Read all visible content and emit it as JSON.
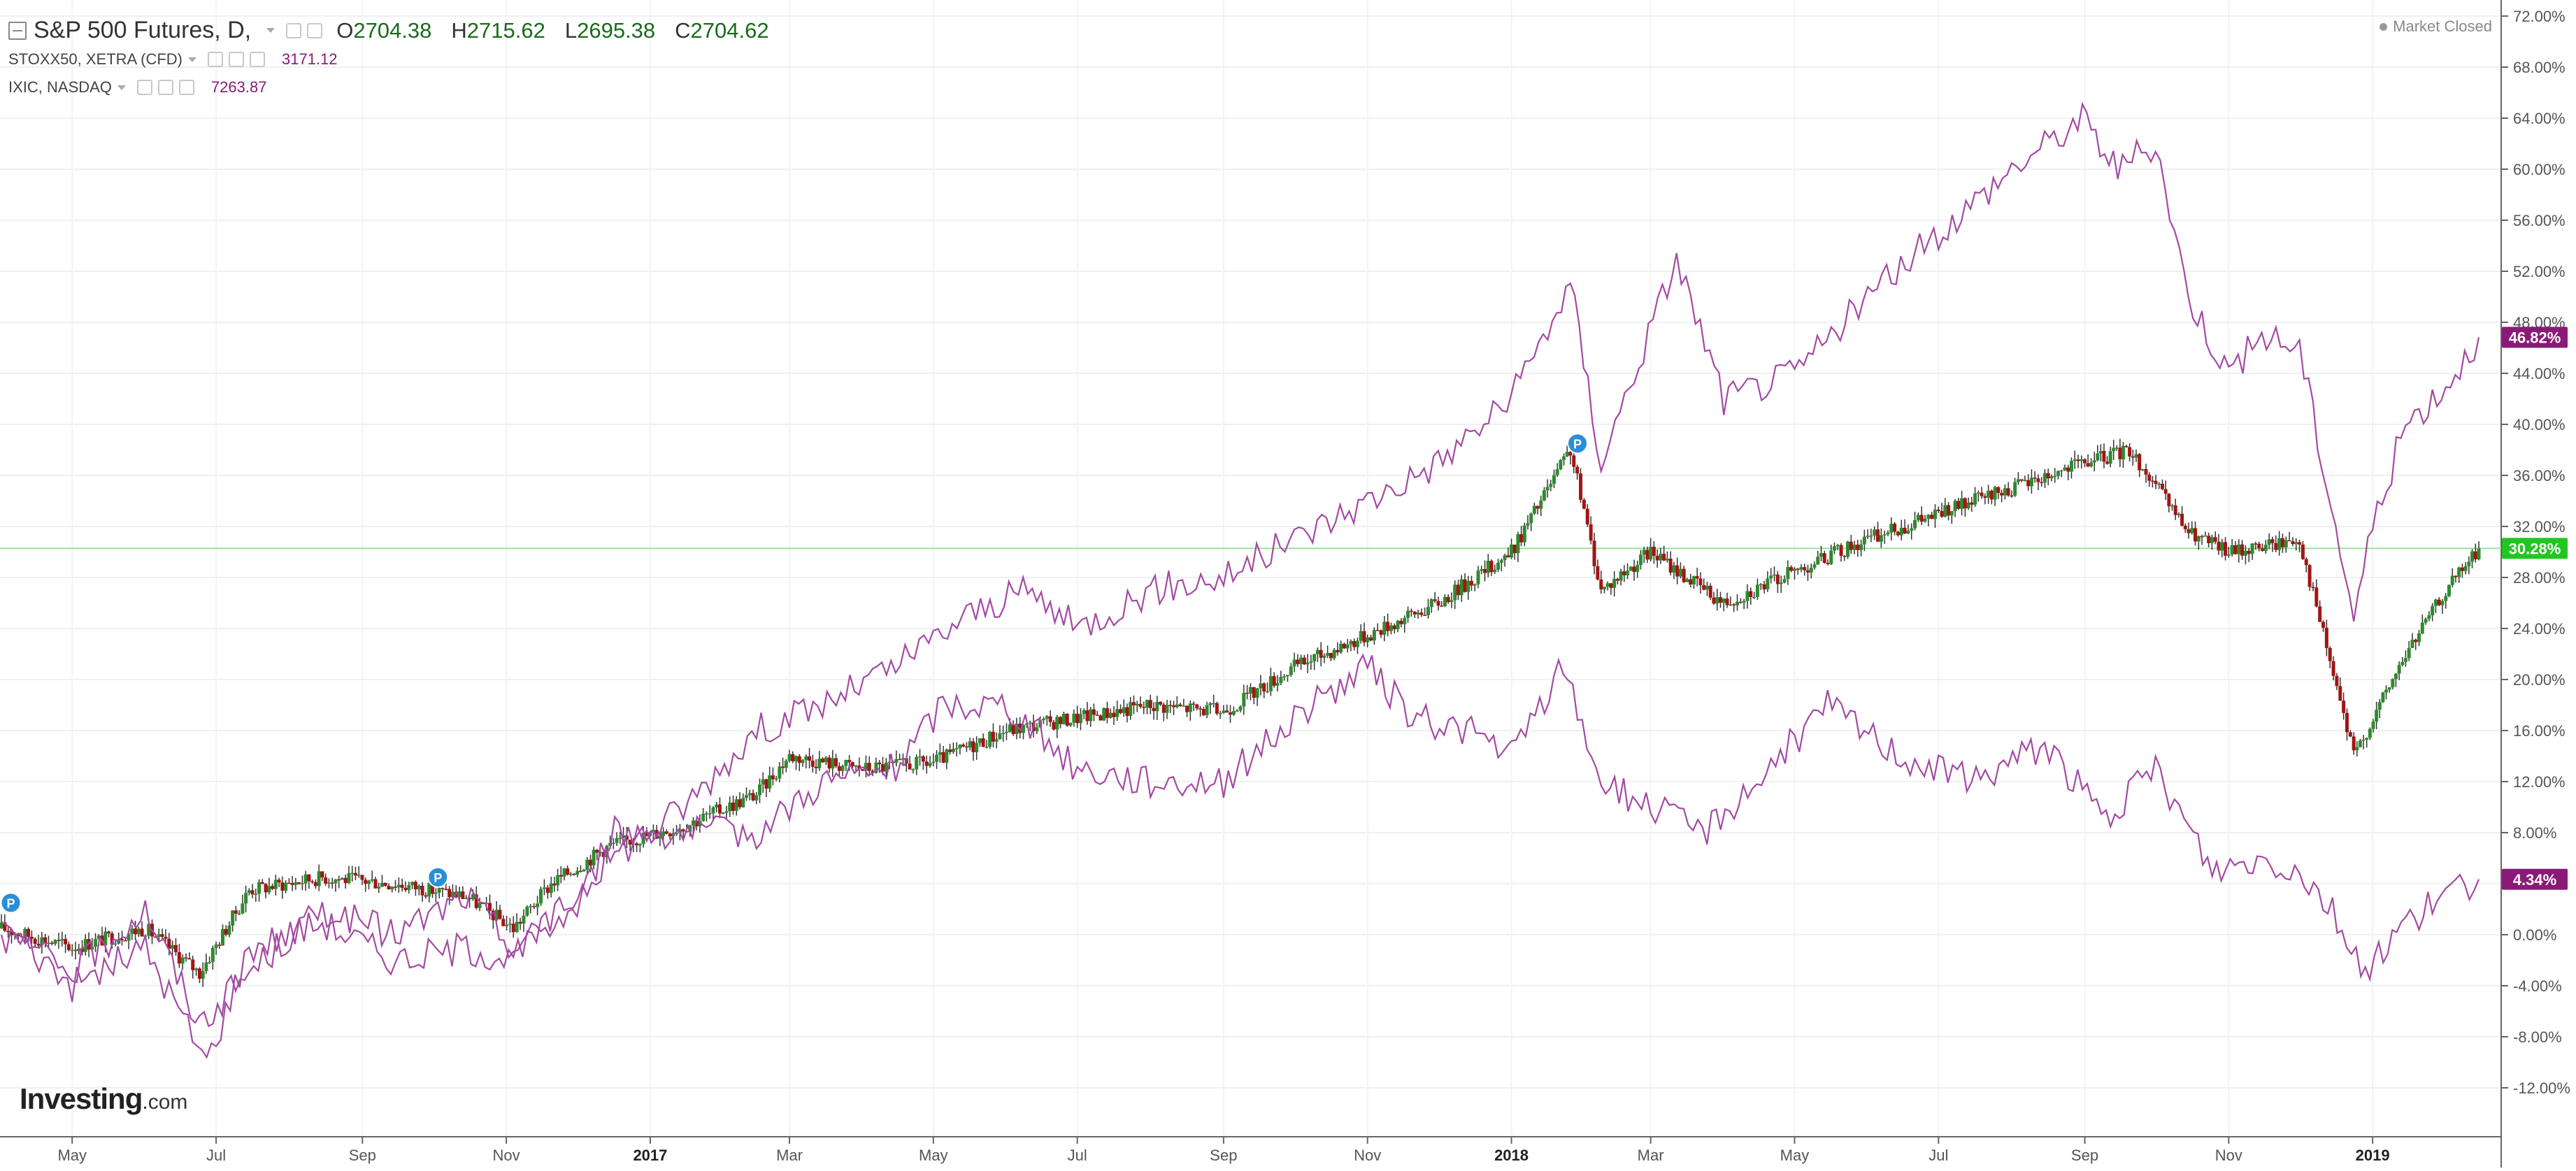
{
  "header": {
    "main_symbol": "S&P 500 Futures, D,",
    "ohlc": [
      {
        "label": "O",
        "value": "2704.38"
      },
      {
        "label": "H",
        "value": "2715.62"
      },
      {
        "label": "L",
        "value": "2695.38"
      },
      {
        "label": "C",
        "value": "2704.62"
      }
    ],
    "compare": [
      {
        "symbol": "STOXX50, XETRA (CFD)",
        "value": "3171.12"
      },
      {
        "symbol": "IXIC, NASDAQ",
        "value": "7263.87"
      }
    ],
    "market_status": "Market Closed"
  },
  "logo": {
    "brand": "Investing",
    "domain": ".com"
  },
  "colors": {
    "up": "#2e8b2e",
    "down": "#a31515",
    "compare_line": "#a34aa3",
    "last_price_line": "#9be09b",
    "label_green": "#22c522",
    "label_purple": "#8a1a78"
  },
  "chart_data": {
    "type": "line",
    "yaxis": {
      "unit": "%",
      "range": [
        -15,
        74
      ],
      "ticks": [
        "72.00%",
        "68.00%",
        "64.00%",
        "60.00%",
        "56.00%",
        "52.00%",
        "48.00%",
        "44.00%",
        "40.00%",
        "36.00%",
        "32.00%",
        "28.00%",
        "24.00%",
        "20.00%",
        "16.00%",
        "12.00%",
        "8.00%",
        "4.00%",
        "0.00%",
        "-4.00%",
        "-8.00%",
        "-12.00%"
      ]
    },
    "xaxis": {
      "labels": [
        "May",
        "Jul",
        "Sep",
        "Nov",
        "2017",
        "Mar",
        "May",
        "Jul",
        "Sep",
        "Nov",
        "2018",
        "Mar",
        "May",
        "Jul",
        "Sep",
        "Nov",
        "2019"
      ],
      "years": [
        "2017",
        "2018",
        "2019"
      ]
    },
    "last_price_labels": [
      {
        "series": "IXIC, NASDAQ",
        "text": "46.82%",
        "value": 46.82
      },
      {
        "series": "S&P 500 Futures",
        "text": "30.28%",
        "value": 30.28
      },
      {
        "series": "STOXX50, XETRA (CFD)",
        "text": "4.34%",
        "value": 4.34
      }
    ],
    "markers": [
      {
        "label": "P",
        "date": "2016-04-05",
        "value": 2.5
      },
      {
        "label": "P",
        "date": "2016-10-03",
        "value": 4.5
      },
      {
        "label": "P",
        "date": "2018-01-29",
        "value": 38.5
      }
    ],
    "series": [
      {
        "name": "S&P 500 Futures",
        "style": "candlestick",
        "points": [
          [
            "2016-04-01",
            0.5
          ],
          [
            "2016-05-01",
            -1
          ],
          [
            "2016-06-01",
            0.5
          ],
          [
            "2016-06-24",
            -3
          ],
          [
            "2016-07-15",
            3.5
          ],
          [
            "2016-08-15",
            4.5
          ],
          [
            "2016-09-15",
            4
          ],
          [
            "2016-10-15",
            3
          ],
          [
            "2016-11-04",
            0.5
          ],
          [
            "2016-11-20",
            4
          ],
          [
            "2016-12-15",
            7
          ],
          [
            "2017-01-15",
            8.5
          ],
          [
            "2017-02-15",
            11
          ],
          [
            "2017-03-01",
            14
          ],
          [
            "2017-04-01",
            13
          ],
          [
            "2017-05-01",
            13.5
          ],
          [
            "2017-06-01",
            16
          ],
          [
            "2017-07-01",
            17
          ],
          [
            "2017-08-01",
            18
          ],
          [
            "2017-09-01",
            17.5
          ],
          [
            "2017-10-01",
            21
          ],
          [
            "2017-11-01",
            23.5
          ],
          [
            "2017-12-01",
            26
          ],
          [
            "2018-01-01",
            30
          ],
          [
            "2018-01-26",
            38
          ],
          [
            "2018-02-08",
            27
          ],
          [
            "2018-03-01",
            30
          ],
          [
            "2018-04-01",
            26
          ],
          [
            "2018-05-01",
            28.5
          ],
          [
            "2018-06-01",
            31
          ],
          [
            "2018-07-01",
            33
          ],
          [
            "2018-08-01",
            35
          ],
          [
            "2018-09-01",
            37
          ],
          [
            "2018-09-20",
            38
          ],
          [
            "2018-10-15",
            31.5
          ],
          [
            "2018-11-01",
            30
          ],
          [
            "2018-12-01",
            31
          ],
          [
            "2018-12-24",
            14
          ],
          [
            "2019-01-15",
            22
          ],
          [
            "2019-02-01",
            27
          ],
          [
            "2019-02-15",
            30.28
          ]
        ]
      },
      {
        "name": "IXIC, NASDAQ",
        "style": "line",
        "points": [
          [
            "2016-04-01",
            1
          ],
          [
            "2016-05-01",
            -4
          ],
          [
            "2016-06-01",
            -1
          ],
          [
            "2016-06-27",
            -10
          ],
          [
            "2016-07-15",
            -1
          ],
          [
            "2016-08-15",
            1
          ],
          [
            "2016-09-15",
            -2
          ],
          [
            "2016-10-15",
            -1
          ],
          [
            "2016-11-04",
            -2
          ],
          [
            "2016-12-15",
            6
          ],
          [
            "2017-01-15",
            10
          ],
          [
            "2017-02-15",
            16
          ],
          [
            "2017-03-15",
            18
          ],
          [
            "2017-04-15",
            21
          ],
          [
            "2017-05-15",
            25
          ],
          [
            "2017-06-10",
            27
          ],
          [
            "2017-07-01",
            24
          ],
          [
            "2017-08-01",
            27
          ],
          [
            "2017-09-01",
            28
          ],
          [
            "2017-10-01",
            31
          ],
          [
            "2017-11-01",
            34
          ],
          [
            "2017-12-01",
            37
          ],
          [
            "2018-01-01",
            42
          ],
          [
            "2018-01-26",
            51
          ],
          [
            "2018-02-08",
            37
          ],
          [
            "2018-03-12",
            53
          ],
          [
            "2018-04-01",
            42
          ],
          [
            "2018-05-01",
            44
          ],
          [
            "2018-06-01",
            50
          ],
          [
            "2018-07-01",
            55
          ],
          [
            "2018-08-01",
            60
          ],
          [
            "2018-08-31",
            64
          ],
          [
            "2018-09-15",
            60
          ],
          [
            "2018-10-01",
            62
          ],
          [
            "2018-10-15",
            50
          ],
          [
            "2018-11-01",
            44
          ],
          [
            "2018-11-15",
            47
          ],
          [
            "2018-12-01",
            46
          ],
          [
            "2018-12-24",
            25
          ],
          [
            "2019-01-01",
            32
          ],
          [
            "2019-01-15",
            40
          ],
          [
            "2019-02-01",
            43
          ],
          [
            "2019-02-15",
            46.82
          ]
        ]
      },
      {
        "name": "STOXX50, XETRA (CFD)",
        "style": "line",
        "points": [
          [
            "2016-04-01",
            0
          ],
          [
            "2016-05-01",
            -3
          ],
          [
            "2016-06-01",
            2
          ],
          [
            "2016-06-24",
            -7
          ],
          [
            "2016-07-15",
            -3
          ],
          [
            "2016-08-15",
            2
          ],
          [
            "2016-09-15",
            0
          ],
          [
            "2016-10-15",
            3
          ],
          [
            "2016-11-04",
            -1
          ],
          [
            "2016-12-01",
            2
          ],
          [
            "2016-12-15",
            8
          ],
          [
            "2017-01-15",
            8
          ],
          [
            "2017-02-15",
            8
          ],
          [
            "2017-03-15",
            12
          ],
          [
            "2017-04-15",
            13
          ],
          [
            "2017-05-05",
            18
          ],
          [
            "2017-06-01",
            18
          ],
          [
            "2017-07-01",
            13
          ],
          [
            "2017-08-01",
            12
          ],
          [
            "2017-09-01",
            12
          ],
          [
            "2017-10-01",
            17
          ],
          [
            "2017-11-01",
            21
          ],
          [
            "2017-11-20",
            17
          ],
          [
            "2017-12-15",
            16
          ],
          [
            "2018-01-01",
            14
          ],
          [
            "2018-01-23",
            21
          ],
          [
            "2018-02-08",
            12
          ],
          [
            "2018-03-01",
            10
          ],
          [
            "2018-03-23",
            8
          ],
          [
            "2018-04-15",
            12
          ],
          [
            "2018-05-15",
            18
          ],
          [
            "2018-06-15",
            14
          ],
          [
            "2018-07-15",
            12
          ],
          [
            "2018-08-15",
            15
          ],
          [
            "2018-09-10",
            9
          ],
          [
            "2018-10-01",
            13
          ],
          [
            "2018-10-25",
            5
          ],
          [
            "2018-11-15",
            6
          ],
          [
            "2018-12-01",
            5
          ],
          [
            "2018-12-15",
            2
          ],
          [
            "2018-12-27",
            -3
          ],
          [
            "2019-01-15",
            1
          ],
          [
            "2019-02-01",
            3
          ],
          [
            "2019-02-15",
            4.34
          ]
        ]
      }
    ]
  }
}
